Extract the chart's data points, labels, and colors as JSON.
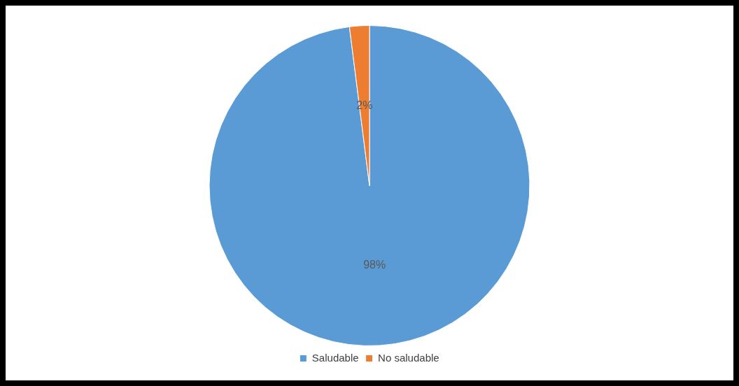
{
  "chart_data": {
    "type": "pie",
    "categories": [
      "Saludable",
      "No saludable"
    ],
    "values": [
      98,
      2
    ],
    "colors": [
      "#5b9bd5",
      "#ed7d31"
    ],
    "value_labels": [
      "98%",
      "2%"
    ],
    "legend": "bottom"
  }
}
